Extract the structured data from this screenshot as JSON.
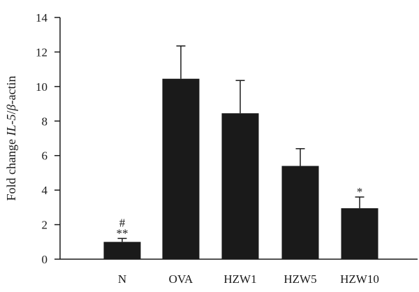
{
  "chart_data": {
    "type": "bar",
    "title": "",
    "xlabel": "",
    "ylabel": {
      "prefix": "Fold change ",
      "gene": "IL-5",
      "separator": "/",
      "greek": "β",
      "suffix": "-actin"
    },
    "categories": [
      "N",
      "OVA",
      "HZW1",
      "HZW5",
      "HZW10"
    ],
    "values": [
      1.0,
      10.45,
      8.45,
      5.4,
      2.95
    ],
    "errors": [
      0.2,
      1.9,
      1.9,
      1.0,
      0.65
    ],
    "annotations": [
      {
        "category": "N",
        "lines": [
          "#",
          "**"
        ]
      },
      {
        "category": "HZW10",
        "lines": [
          "*"
        ]
      }
    ],
    "ylim": [
      0,
      14
    ],
    "yticks": [
      0,
      2,
      4,
      6,
      8,
      10,
      12,
      14
    ],
    "grid": false,
    "legend": "none",
    "bar_color": "#1a1a1a"
  }
}
